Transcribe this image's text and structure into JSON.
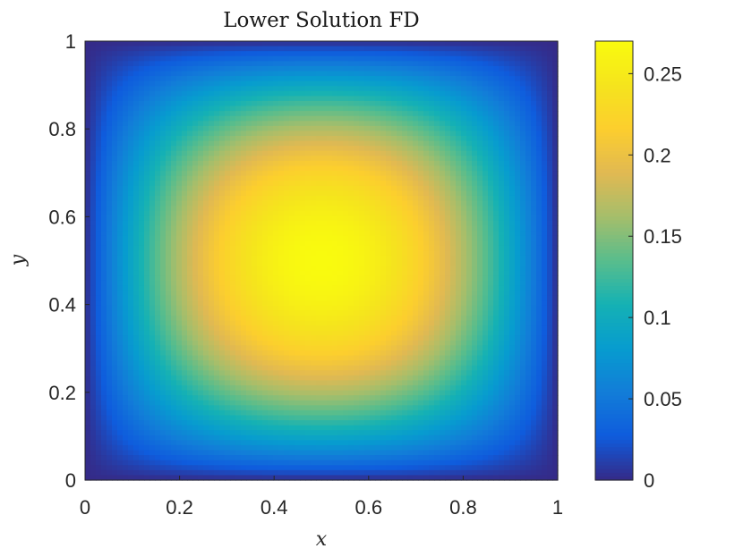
{
  "chart_data": {
    "type": "heatmap",
    "title": "Lower Solution FD",
    "xlabel": "x",
    "ylabel": "y",
    "xlim": [
      0,
      1
    ],
    "ylim": [
      0,
      1
    ],
    "x_ticks": [
      "0",
      "0.2",
      "0.4",
      "0.6",
      "0.8",
      "1"
    ],
    "y_ticks": [
      "0",
      "0.2",
      "0.4",
      "0.6",
      "0.8",
      "1"
    ],
    "colorbar": {
      "colormap": "parula",
      "range": [
        0,
        0.27
      ],
      "ticks": [
        "0",
        "0.05",
        "0.1",
        "0.15",
        "0.2",
        "0.25"
      ]
    },
    "grid": false,
    "field": {
      "description_free": true,
      "peak_value": 0.27,
      "peak_location": [
        0.5,
        0.5
      ],
      "boundary_value": 0
    }
  }
}
